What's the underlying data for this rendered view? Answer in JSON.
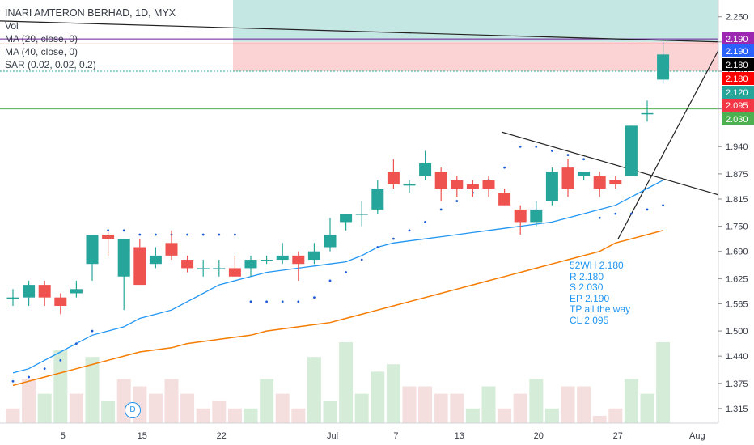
{
  "chart_data": {
    "type": "candlestick",
    "title": "INARI AMTERON BERHAD, 1D, MYX",
    "legend": [
      {
        "label": "Vol"
      },
      {
        "label": "MA (20, close, 0)"
      },
      {
        "label": "MA (40, close, 0)"
      },
      {
        "label": "SAR (0.02, 0.02, 0.2)"
      }
    ],
    "ylim": [
      1.28,
      2.29
    ],
    "y_ticks": [
      "2.250",
      "2.190",
      "2.120",
      "2.030",
      "1.940",
      "1.875",
      "1.815",
      "1.750",
      "1.690",
      "1.625",
      "1.565",
      "1.500",
      "1.440",
      "1.375",
      "1.315"
    ],
    "x_ticks": [
      {
        "label": "5",
        "index": 3
      },
      {
        "label": "15",
        "index": 8
      },
      {
        "label": "22",
        "index": 13
      },
      {
        "label": "Jul",
        "index": 20
      },
      {
        "label": "7",
        "index": 24
      },
      {
        "label": "13",
        "index": 28
      },
      {
        "label": "20",
        "index": 33
      },
      {
        "label": "27",
        "index": 38
      },
      {
        "label": "Aug",
        "index": 43
      }
    ],
    "candles": [
      {
        "o": 1.58,
        "h": 1.6,
        "l": 1.56,
        "c": 1.58
      },
      {
        "o": 1.58,
        "h": 1.62,
        "l": 1.56,
        "c": 1.61
      },
      {
        "o": 1.61,
        "h": 1.62,
        "l": 1.56,
        "c": 1.58
      },
      {
        "o": 1.58,
        "h": 1.59,
        "l": 1.54,
        "c": 1.56
      },
      {
        "o": 1.59,
        "h": 1.62,
        "l": 1.58,
        "c": 1.6
      },
      {
        "o": 1.66,
        "h": 1.73,
        "l": 1.62,
        "c": 1.73
      },
      {
        "o": 1.73,
        "h": 1.74,
        "l": 1.68,
        "c": 1.72
      },
      {
        "o": 1.63,
        "h": 1.72,
        "l": 1.55,
        "c": 1.72
      },
      {
        "o": 1.7,
        "h": 1.72,
        "l": 1.62,
        "c": 1.61
      },
      {
        "o": 1.66,
        "h": 1.7,
        "l": 1.65,
        "c": 1.68
      },
      {
        "o": 1.71,
        "h": 1.74,
        "l": 1.67,
        "c": 1.68
      },
      {
        "o": 1.67,
        "h": 1.68,
        "l": 1.64,
        "c": 1.65
      },
      {
        "o": 1.65,
        "h": 1.67,
        "l": 1.63,
        "c": 1.65
      },
      {
        "o": 1.65,
        "h": 1.67,
        "l": 1.63,
        "c": 1.65
      },
      {
        "o": 1.65,
        "h": 1.68,
        "l": 1.63,
        "c": 1.63
      },
      {
        "o": 1.65,
        "h": 1.68,
        "l": 1.63,
        "c": 1.67
      },
      {
        "o": 1.67,
        "h": 1.68,
        "l": 1.66,
        "c": 1.67
      },
      {
        "o": 1.67,
        "h": 1.71,
        "l": 1.66,
        "c": 1.68
      },
      {
        "o": 1.68,
        "h": 1.69,
        "l": 1.62,
        "c": 1.66
      },
      {
        "o": 1.67,
        "h": 1.71,
        "l": 1.66,
        "c": 1.69
      },
      {
        "o": 1.7,
        "h": 1.77,
        "l": 1.69,
        "c": 1.73
      },
      {
        "o": 1.76,
        "h": 1.78,
        "l": 1.74,
        "c": 1.78
      },
      {
        "o": 1.78,
        "h": 1.81,
        "l": 1.75,
        "c": 1.78
      },
      {
        "o": 1.79,
        "h": 1.86,
        "l": 1.78,
        "c": 1.84
      },
      {
        "o": 1.88,
        "h": 1.91,
        "l": 1.84,
        "c": 1.85
      },
      {
        "o": 1.85,
        "h": 1.86,
        "l": 1.83,
        "c": 1.85
      },
      {
        "o": 1.87,
        "h": 1.93,
        "l": 1.86,
        "c": 1.9
      },
      {
        "o": 1.88,
        "h": 1.89,
        "l": 1.81,
        "c": 1.84
      },
      {
        "o": 1.86,
        "h": 1.87,
        "l": 1.82,
        "c": 1.84
      },
      {
        "o": 1.85,
        "h": 1.86,
        "l": 1.82,
        "c": 1.84
      },
      {
        "o": 1.86,
        "h": 1.87,
        "l": 1.82,
        "c": 1.84
      },
      {
        "o": 1.83,
        "h": 1.84,
        "l": 1.8,
        "c": 1.8
      },
      {
        "o": 1.79,
        "h": 1.8,
        "l": 1.73,
        "c": 1.76
      },
      {
        "o": 1.76,
        "h": 1.81,
        "l": 1.75,
        "c": 1.79
      },
      {
        "o": 1.81,
        "h": 1.89,
        "l": 1.8,
        "c": 1.88
      },
      {
        "o": 1.89,
        "h": 1.91,
        "l": 1.82,
        "c": 1.84
      },
      {
        "o": 1.87,
        "h": 1.88,
        "l": 1.86,
        "c": 1.88
      },
      {
        "o": 1.87,
        "h": 1.88,
        "l": 1.82,
        "c": 1.84
      },
      {
        "o": 1.86,
        "h": 1.87,
        "l": 1.84,
        "c": 1.85
      },
      {
        "o": 1.87,
        "h": 1.99,
        "l": 1.87,
        "c": 1.99
      },
      {
        "o": 2.02,
        "h": 2.05,
        "l": 2.0,
        "c": 2.02
      },
      {
        "o": 2.1,
        "h": 2.19,
        "l": 2.09,
        "c": 2.16
      }
    ],
    "volume_up": [
      false,
      false,
      true,
      true,
      false,
      true,
      true,
      false,
      false,
      false,
      false,
      false,
      false,
      false,
      false,
      true,
      true,
      false,
      false,
      true,
      true,
      true,
      true,
      true,
      true,
      false,
      false,
      false,
      false,
      true,
      true,
      false,
      false,
      true,
      true,
      false,
      false,
      false,
      false,
      true,
      true,
      true
    ],
    "volume": [
      2,
      6,
      4,
      10,
      4,
      9,
      3,
      6,
      5,
      4,
      6,
      4,
      2,
      3,
      2,
      2,
      6,
      4,
      2,
      9,
      3,
      11,
      4,
      7,
      8,
      5,
      5,
      4,
      4,
      2,
      5,
      2,
      4,
      6,
      2,
      5,
      5,
      1,
      2,
      6,
      4,
      11
    ],
    "ma20": [
      1.4,
      1.41,
      1.43,
      1.45,
      1.47,
      1.49,
      1.5,
      1.51,
      1.53,
      1.54,
      1.55,
      1.57,
      1.59,
      1.61,
      1.62,
      1.63,
      1.64,
      1.645,
      1.65,
      1.655,
      1.66,
      1.665,
      1.68,
      1.7,
      1.71,
      1.715,
      1.72,
      1.725,
      1.73,
      1.735,
      1.74,
      1.745,
      1.75,
      1.755,
      1.76,
      1.77,
      1.78,
      1.79,
      1.8,
      1.82,
      1.84,
      1.86
    ],
    "ma40": [
      1.37,
      1.38,
      1.39,
      1.4,
      1.41,
      1.42,
      1.43,
      1.44,
      1.45,
      1.455,
      1.46,
      1.47,
      1.475,
      1.48,
      1.485,
      1.49,
      1.5,
      1.505,
      1.51,
      1.515,
      1.52,
      1.53,
      1.54,
      1.55,
      1.56,
      1.57,
      1.58,
      1.59,
      1.6,
      1.61,
      1.62,
      1.63,
      1.64,
      1.65,
      1.66,
      1.67,
      1.68,
      1.69,
      1.71,
      1.72,
      1.73,
      1.74
    ],
    "sar": [
      1.38,
      1.39,
      1.41,
      1.43,
      1.47,
      1.5,
      1.74,
      1.74,
      1.73,
      1.73,
      1.73,
      1.73,
      1.73,
      1.73,
      1.73,
      1.57,
      1.57,
      1.57,
      1.57,
      1.58,
      1.62,
      1.64,
      1.67,
      1.7,
      1.72,
      1.74,
      1.76,
      1.79,
      1.81,
      1.83,
      1.86,
      1.89,
      1.94,
      1.94,
      1.93,
      1.92,
      1.91,
      1.77,
      1.78,
      1.78,
      1.79,
      1.8
    ],
    "levels": [
      {
        "value": 2.19,
        "label": "2.190",
        "color": "#9c27b0"
      },
      {
        "value": 2.19,
        "label": "2.190",
        "color": "#2962ff"
      },
      {
        "value": 2.18,
        "label": "2.180",
        "color": "#000000"
      },
      {
        "value": 2.18,
        "label": "2.180",
        "color": "#ff0000"
      },
      {
        "value": 2.12,
        "label": "2.120",
        "color": "#26a69a"
      },
      {
        "value": 2.095,
        "label": "2.095",
        "color": "#f23645"
      },
      {
        "value": 2.03,
        "label": "2.030",
        "color": "#4caf50"
      }
    ],
    "annotations": [
      "52WH 2.180",
      "R 2.180",
      "S 2.030",
      "EP 2.190",
      "TP all the way",
      "CL 2.095"
    ],
    "event_marker": "D",
    "colors": {
      "up": "#26a69a",
      "down": "#ef5350",
      "ma20": "#2196f3",
      "ma40": "#f57c00",
      "sar": "#1e5bd6",
      "vol_up": "#d5ecd8",
      "vol_down": "#f4dede",
      "target_zone": "#b2dfdb",
      "stop_zone": "#fccbcd"
    }
  }
}
